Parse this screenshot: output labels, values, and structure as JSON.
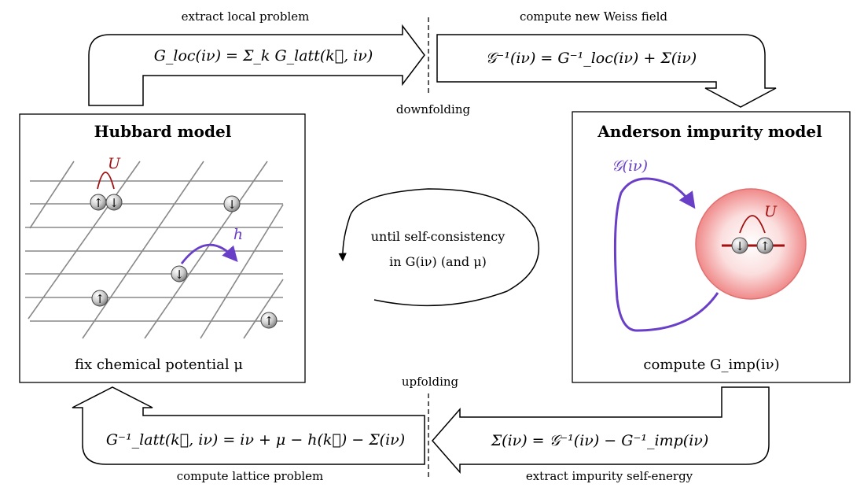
{
  "top_left_label": "extract local problem",
  "top_left_formula": "G_loc(iν) = Σ_k G_latt(k⃗, iν)",
  "top_right_label": "compute new Weiss field",
  "top_right_formula": "𝒢⁻¹(iν) = G⁻¹_loc(iν) + Σ(iν)",
  "downfolding": "downfolding",
  "upfolding": "upfolding",
  "hubbard": {
    "title": "Hubbard model",
    "footer": "fix chemical potential μ",
    "interaction": "U",
    "hopping": "h"
  },
  "anderson": {
    "title": "Anderson impurity model",
    "footer": "compute G_imp(iν)",
    "interaction": "U",
    "bath": "𝒢(iν)"
  },
  "cycle": {
    "line1": "until self-consistency",
    "line2": "in G(iν) (and μ)"
  },
  "bottom_left_label": "compute lattice problem",
  "bottom_left_formula": "G⁻¹_latt(k⃗, iν) = iν + μ − h(k⃗) − Σ(iν)",
  "bottom_right_label": "extract impurity self-energy",
  "bottom_right_formula": "Σ(iν) = 𝒢⁻¹(iν) − G⁻¹_imp(iν)",
  "spins": {
    "up": "↑",
    "down": "↓"
  },
  "colors": {
    "interaction": "#a01010",
    "hopping": "#6a3fc8",
    "impurity": "#e88080"
  }
}
